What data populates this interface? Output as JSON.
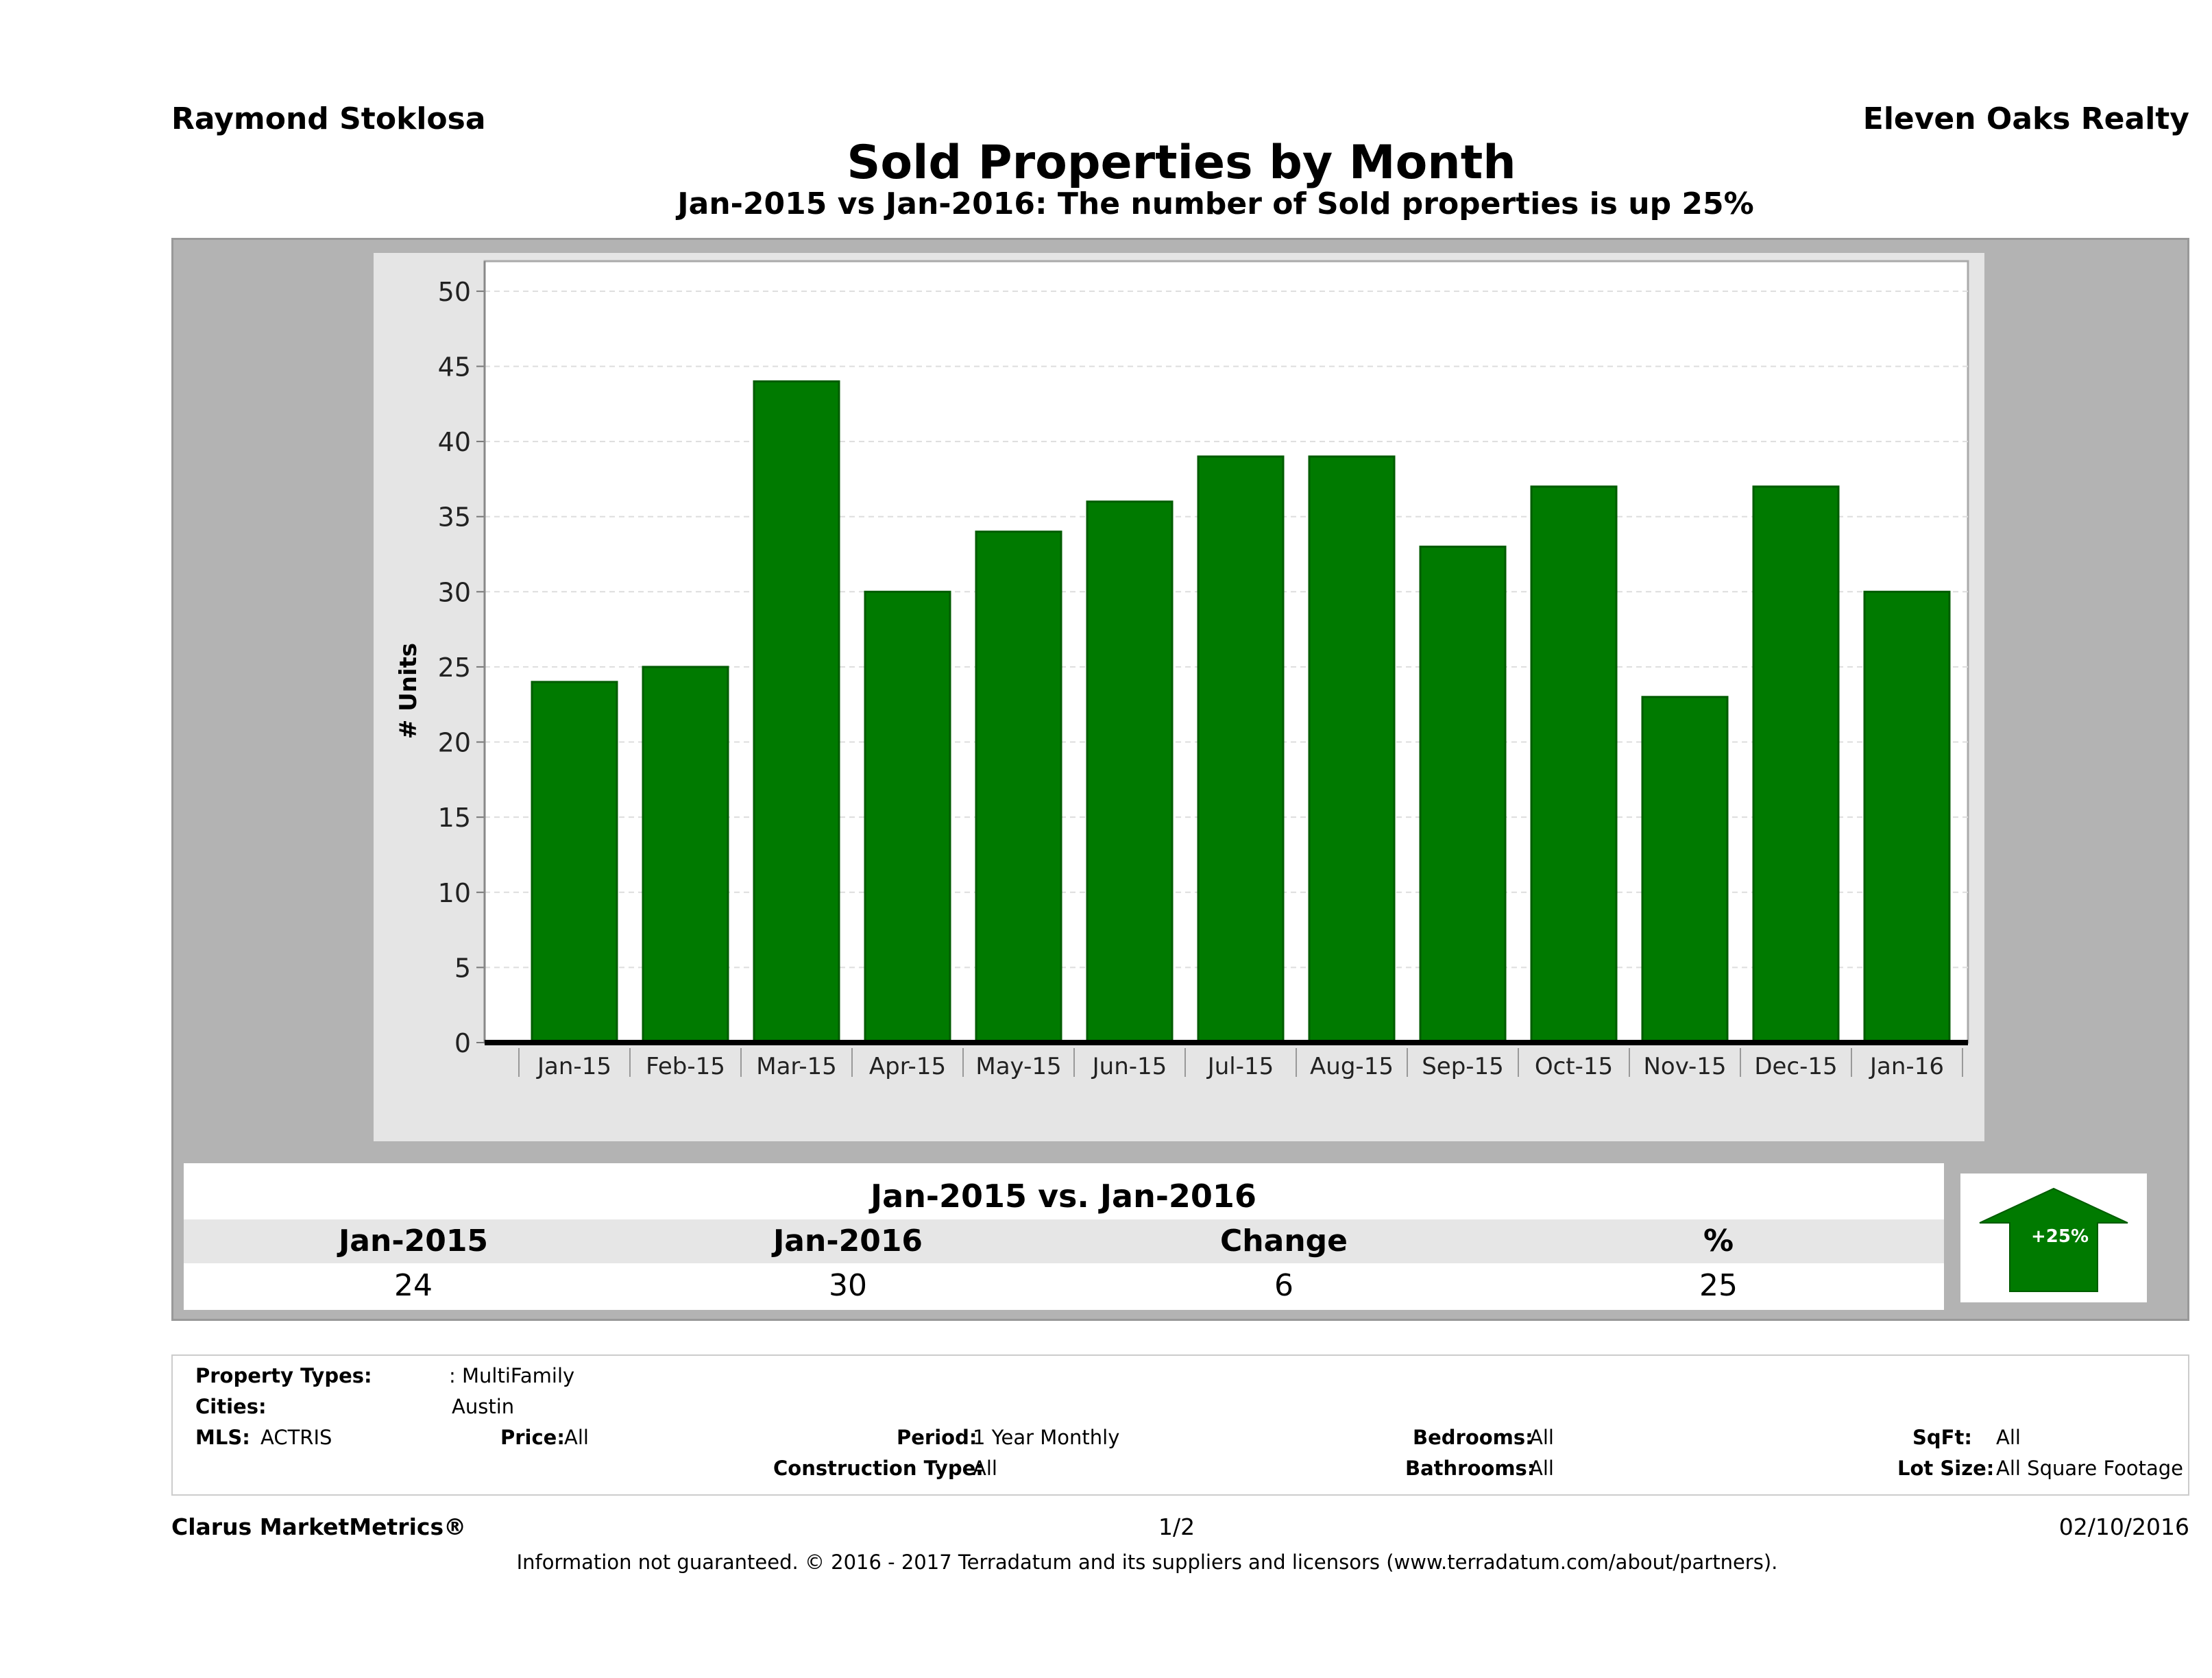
{
  "header": {
    "agent": "Raymond Stoklosa",
    "brokerage": "Eleven Oaks Realty",
    "title": "Sold Properties by Month",
    "subtitle": "Jan-2015 vs Jan-2016: The number of Sold  properties is up 25%"
  },
  "chart_data": {
    "type": "bar",
    "title": "Sold Properties by Month",
    "subtitle": "Jan-2015 vs Jan-2016: The number of Sold  properties is up 25%",
    "xlabel": "",
    "ylabel": "# Units",
    "categories": [
      "Jan-15",
      "Feb-15",
      "Mar-15",
      "Apr-15",
      "May-15",
      "Jun-15",
      "Jul-15",
      "Aug-15",
      "Sep-15",
      "Oct-15",
      "Nov-15",
      "Dec-15",
      "Jan-16"
    ],
    "values": [
      24,
      25,
      44,
      30,
      34,
      36,
      39,
      39,
      33,
      37,
      23,
      37,
      30
    ],
    "ylim": [
      0,
      52
    ],
    "yticks": [
      0,
      5,
      10,
      15,
      20,
      25,
      30,
      35,
      40,
      45,
      50
    ],
    "grid": true,
    "colors": {
      "bar": "#007a00",
      "bar_edge": "#005c00",
      "plot_bg": "#ffffff",
      "outer_bg": "#e5e5e5",
      "grid": "#dddddd"
    }
  },
  "summary": {
    "title": "Jan-2015 vs. Jan-2016",
    "headers": [
      "Jan-2015",
      "Jan-2016",
      "Change",
      "%"
    ],
    "values": [
      "24",
      "30",
      "6",
      "25"
    ],
    "arrow_label": "+25%",
    "arrow_icon": "up-arrow-icon",
    "arrow_color": "#007a00"
  },
  "criteria": {
    "property_types_label": "Property Types:",
    "property_types_value": ": MultiFamily",
    "cities_label": "Cities:",
    "cities_value": "Austin",
    "mls_label": "MLS:",
    "mls_value": "ACTRIS",
    "price_label": "Price:",
    "price_value": "All",
    "period_label": "Period:",
    "period_value": "1 Year Monthly",
    "construction_label": "Construction Type:",
    "construction_value": "All",
    "bedrooms_label": "Bedrooms:",
    "bedrooms_value": "All",
    "bathrooms_label": "Bathrooms:",
    "bathrooms_value": "All",
    "sqft_label": "SqFt:",
    "sqft_value": "All",
    "lot_label": "Lot Size:",
    "lot_value": "All Square Footage"
  },
  "footer": {
    "brand": "Clarus MarketMetrics®",
    "page": "1/2",
    "date": "02/10/2016",
    "disclaimer": "Information not guaranteed. © 2016 - 2017 Terradatum and its suppliers and licensors (www.terradatum.com/about/partners)."
  }
}
